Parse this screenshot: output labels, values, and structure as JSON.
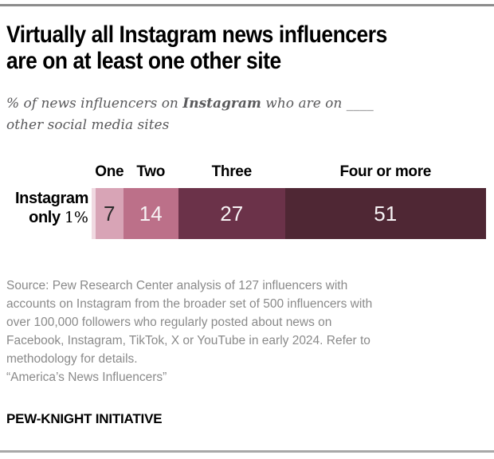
{
  "header": {
    "title_lines": [
      "Virtually all Instagram news influencers",
      "are on at least one other site"
    ],
    "subtitle_prefix": "% of news influencers on ",
    "subtitle_bold": "Instagram",
    "subtitle_suffix": " who are on ",
    "subtitle_blank": "____",
    "subtitle_line2": "other social media sites"
  },
  "chart_data": {
    "type": "bar",
    "stacked": true,
    "orientation": "horizontal",
    "total": 100,
    "title": "Virtually all Instagram news influencers are on at least one other site",
    "subtitle": "% of news influencers on Instagram who are on ____ other social media sites",
    "xlim": [
      0,
      100
    ],
    "grid": false,
    "legend_position": "above-bar-headers",
    "categories": [
      "Instagram only",
      "One",
      "Two",
      "Three",
      "Four or more"
    ],
    "values": [
      1,
      7,
      14,
      27,
      51
    ],
    "row_label": {
      "line1": "Instagram",
      "line2_bold": "only",
      "line2_value": "1%"
    },
    "segments": [
      {
        "label": "Instagram only",
        "value": 1,
        "color": "#f0d9e1",
        "value_text": "",
        "value_text_color": "#2b2b2b",
        "header": ""
      },
      {
        "label": "One",
        "value": 7,
        "color": "#d8a4b6",
        "value_text": "7",
        "value_text_color": "#2b2b2b",
        "header": "One"
      },
      {
        "label": "Two",
        "value": 14,
        "color": "#bc7089",
        "value_text": "14",
        "value_text_color": "#f7f3f5",
        "header": "Two"
      },
      {
        "label": "Three",
        "value": 27,
        "color": "#6b3249",
        "value_text": "27",
        "value_text_color": "#f7f3f5",
        "header": "Three"
      },
      {
        "label": "Four or more",
        "value": 51,
        "color": "#4f2734",
        "value_text": "51",
        "value_text_color": "#f7f3f5",
        "header": "Four or more"
      }
    ]
  },
  "source": {
    "lines": [
      "Source: Pew Research Center analysis of 127 influencers with",
      "accounts on Instagram from the broader set of 500 influencers with",
      "over 100,000 followers who regularly posted about news on",
      "Facebook, Instagram, TikTok, X or YouTube in early 2024. Refer to",
      "methodology for details.",
      "“America’s News Influencers”"
    ]
  },
  "footer": {
    "initiative": "PEW-KNIGHT INITIATIVE"
  },
  "colors": {
    "rule_top": "#8c8c8c",
    "rule_bottom": "#a8a8a8",
    "title_text": "#000000",
    "subtitle_text": "#5a5a5c",
    "source_text": "#8a8a8a"
  }
}
